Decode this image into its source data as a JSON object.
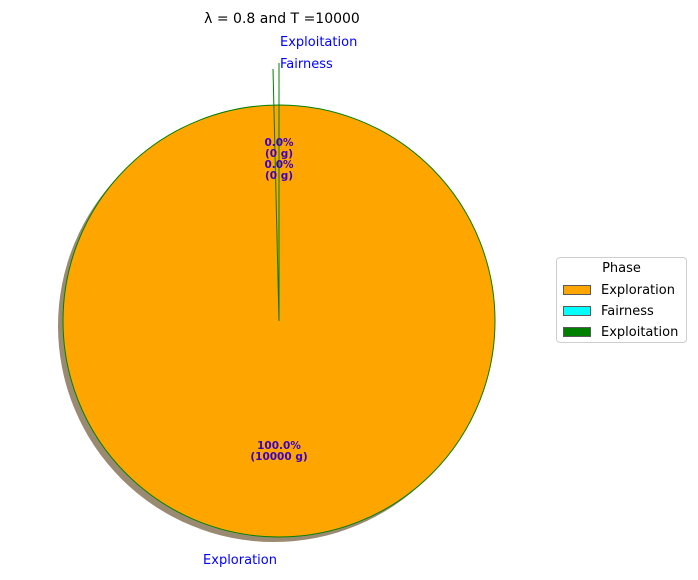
{
  "chart_data": {
    "type": "pie",
    "title": "λ = 0.8 and T =10000",
    "categories": [
      "Exploration",
      "Fairness",
      "Exploitation"
    ],
    "values": [
      10000,
      0,
      0
    ],
    "percent_labels": [
      "100.0%\n(10000 g)",
      "0.0%\n(0 g)",
      "0.0%\n(0 g)"
    ],
    "colors": [
      "#ffa500",
      "#00ffff",
      "#008000"
    ],
    "edge_color": "#008000",
    "label_color": "#0000ff",
    "pct_label_color": "#3a00c8",
    "shadow": true,
    "start_angle_deg": 90,
    "legend": {
      "title": "Phase",
      "placement": "center-right",
      "entries": [
        "Exploration",
        "Fairness",
        "Exploitation"
      ]
    }
  }
}
